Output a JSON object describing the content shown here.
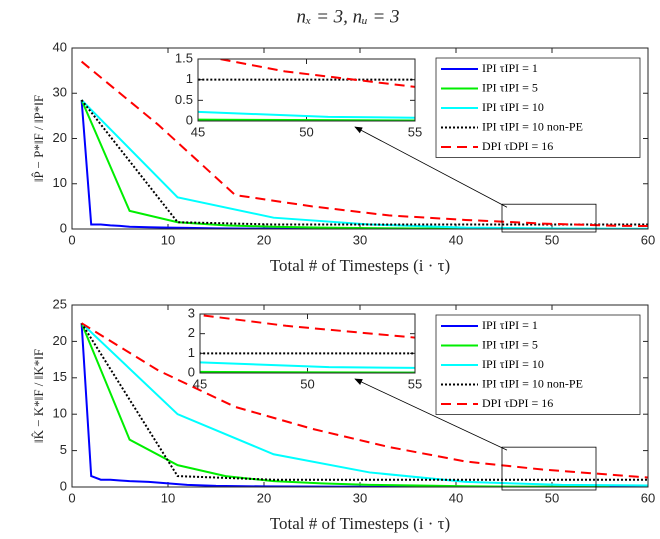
{
  "chart_data": [
    {
      "type": "line",
      "title": "nₓ = 3,  nᵤ = 3",
      "ylabel": "‖P̂ − P*‖F / ‖P*‖F",
      "xlabel": "Total # of Timesteps (i · τ)",
      "xlim": [
        0,
        60
      ],
      "ylim": [
        0,
        40
      ],
      "xticks": [
        0,
        10,
        20,
        30,
        40,
        50,
        60
      ],
      "yticks": [
        0,
        10,
        20,
        30,
        40
      ],
      "series": [
        {
          "name": "IPI τIPI = 1",
          "color": "#0000ff",
          "dash": "solid",
          "x": [
            1,
            2,
            3,
            4,
            5,
            6,
            8,
            10,
            12,
            15,
            20,
            30,
            40,
            50,
            60
          ],
          "values": [
            28.5,
            1.0,
            1.0,
            0.8,
            0.7,
            0.5,
            0.4,
            0.3,
            0.25,
            0.15,
            0.08,
            0.03,
            0.01,
            0.01,
            0.01
          ]
        },
        {
          "name": "IPI τIPI = 5",
          "color": "#00ee00",
          "dash": "solid",
          "x": [
            1,
            6,
            11,
            16,
            21,
            26,
            31,
            36,
            41,
            46,
            51,
            56
          ],
          "values": [
            28.5,
            4,
            1.5,
            0.8,
            0.5,
            0.3,
            0.2,
            0.1,
            0.05,
            0.03,
            0.02,
            0.01
          ]
        },
        {
          "name": "IPI τIPI = 10",
          "color": "#00ffff",
          "dash": "solid",
          "x": [
            1,
            11,
            21,
            31,
            41,
            51,
            61
          ],
          "values": [
            28.5,
            7,
            2.5,
            1,
            0.3,
            0.1,
            0.05
          ]
        },
        {
          "name": "IPI τIPI = 10 non-PE",
          "color": "#000000",
          "dash": "dotted",
          "x": [
            1,
            11,
            21,
            31,
            41,
            51,
            61
          ],
          "values": [
            28.5,
            1.5,
            1.0,
            1.0,
            1.0,
            1.0,
            1.0
          ]
        },
        {
          "name": "DPI τDPI = 16",
          "color": "#ff0000",
          "dash": "dashed",
          "x": [
            1,
            9,
            17,
            25,
            33,
            41,
            49,
            57,
            60
          ],
          "values": [
            37,
            23,
            7.5,
            5,
            3,
            2,
            1.2,
            0.7,
            0.65
          ]
        }
      ],
      "inset": {
        "xlim": [
          45,
          55
        ],
        "ylim": [
          0,
          1.5
        ],
        "xticks": [
          45,
          50,
          55
        ],
        "yticks": [
          0,
          0.5,
          1,
          1.5
        ]
      }
    },
    {
      "type": "line",
      "ylabel": "‖K̂ − K*‖F / ‖K*‖F",
      "xlabel": "Total # of Timesteps (i · τ)",
      "xlim": [
        0,
        60
      ],
      "ylim": [
        0,
        25
      ],
      "xticks": [
        0,
        10,
        20,
        30,
        40,
        50,
        60
      ],
      "yticks": [
        0,
        5,
        10,
        15,
        20,
        25
      ],
      "series": [
        {
          "name": "IPI τIPI = 1",
          "color": "#0000ff",
          "dash": "solid",
          "x": [
            1,
            2,
            3,
            4,
            5,
            6,
            8,
            10,
            12,
            15,
            20,
            30,
            40,
            50,
            60
          ],
          "values": [
            22.5,
            1.5,
            1.0,
            1.0,
            0.9,
            0.8,
            0.7,
            0.5,
            0.3,
            0.15,
            0.08,
            0.03,
            0.01,
            0.01,
            0.01
          ]
        },
        {
          "name": "IPI τIPI = 5",
          "color": "#00ee00",
          "dash": "solid",
          "x": [
            1,
            6,
            11,
            16,
            21,
            26,
            31,
            36,
            41,
            46,
            51,
            56
          ],
          "values": [
            22.5,
            6.5,
            3,
            1.5,
            0.8,
            0.5,
            0.3,
            0.2,
            0.1,
            0.05,
            0.03,
            0.02
          ]
        },
        {
          "name": "IPI τIPI = 10",
          "color": "#00ffff",
          "dash": "solid",
          "x": [
            1,
            11,
            21,
            31,
            41,
            51,
            61
          ],
          "values": [
            22.5,
            10,
            4.5,
            2,
            0.7,
            0.3,
            0.2
          ]
        },
        {
          "name": "IPI τIPI = 10 non-PE",
          "color": "#000000",
          "dash": "dotted",
          "x": [
            1,
            11,
            21,
            31,
            41,
            51,
            61
          ],
          "values": [
            22.5,
            1.5,
            1.0,
            1.0,
            1.0,
            1.0,
            1.0
          ]
        },
        {
          "name": "DPI τDPI = 16",
          "color": "#ff0000",
          "dash": "dashed",
          "x": [
            1,
            9,
            17,
            25,
            33,
            41,
            49,
            57,
            60
          ],
          "values": [
            22.5,
            16,
            11,
            8,
            5.5,
            3.5,
            2.4,
            1.6,
            1.3
          ]
        }
      ],
      "inset": {
        "xlim": [
          45,
          55
        ],
        "ylim": [
          0,
          3
        ],
        "xticks": [
          45,
          50,
          55
        ],
        "yticks": [
          0,
          1,
          2,
          3
        ]
      }
    }
  ]
}
